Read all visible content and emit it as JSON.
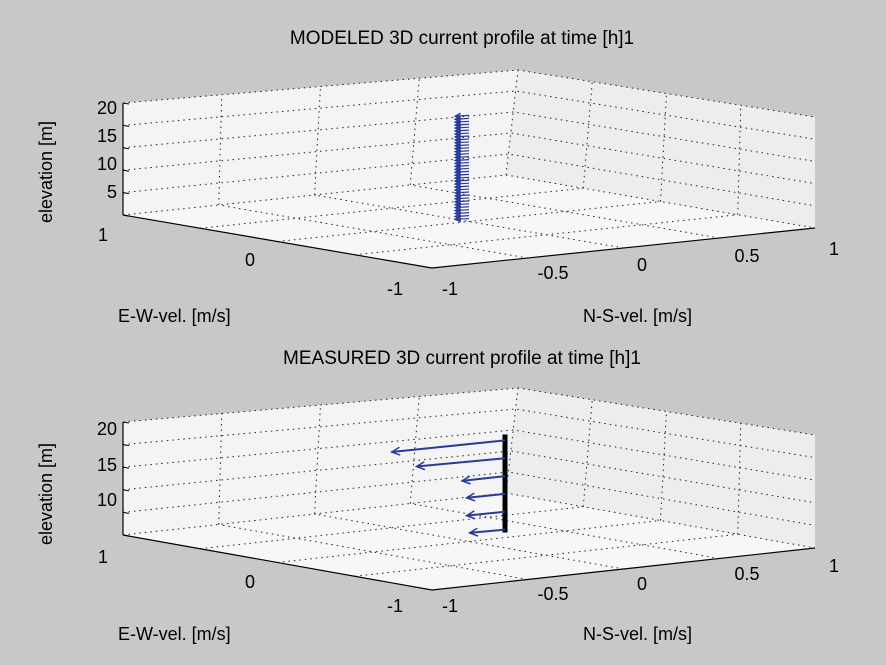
{
  "window": {
    "background": "#c8c8c8",
    "box_color": "#f4f4f4",
    "arrow_color": "#2a3a9a",
    "mast_color": "#000000"
  },
  "chart_data": [
    {
      "type": "quiver3d",
      "title": "MODELED 3D current profile at time [h]1",
      "xlabel": "E-W-vel. [m/s]",
      "ylabel": "N-S-vel. [m/s]",
      "zlabel": "elevation [m]",
      "xlim": [
        -1,
        1
      ],
      "ylim": [
        -1,
        1
      ],
      "zlim": [
        1,
        20
      ],
      "x_ticks": [
        "1",
        "0",
        "-1"
      ],
      "y_ticks": [
        "-1",
        "-0.5",
        "0",
        "0.5",
        "1"
      ],
      "z_ticks": [
        "20",
        "15",
        "10",
        "5",
        "1"
      ],
      "grid": true,
      "arrow_style": "dense",
      "elevations": [
        1.5,
        2,
        2.5,
        3,
        3.5,
        4,
        4.5,
        5,
        5.5,
        6,
        6.5,
        7,
        7.5,
        8,
        8.5,
        9,
        9.5,
        10,
        10.5,
        11,
        11.5,
        12,
        12.5,
        13,
        13.5,
        14,
        14.5,
        15,
        15.5,
        16,
        16.5,
        17,
        17.5,
        18,
        18.5,
        19
      ],
      "ew_vel": [
        0.1,
        0.1,
        0.1,
        0.1,
        0.1,
        0.1,
        0.1,
        0.1,
        0.1,
        0.1,
        0.1,
        0.1,
        0.1,
        0.1,
        0.1,
        0.1,
        0.1,
        0.1,
        0.1,
        0.1,
        0.1,
        0.1,
        0.1,
        0.1,
        0.1,
        0.1,
        0.1,
        0.1,
        0.1,
        0.1,
        0.1,
        0.1,
        0.1,
        0.1,
        0.1,
        0.1
      ],
      "ns_vel": [
        -0.08,
        -0.08,
        -0.08,
        -0.08,
        -0.08,
        -0.08,
        -0.08,
        -0.08,
        -0.08,
        -0.08,
        -0.08,
        -0.08,
        -0.08,
        -0.08,
        -0.08,
        -0.08,
        -0.08,
        -0.08,
        -0.08,
        -0.08,
        -0.08,
        -0.08,
        -0.08,
        -0.08,
        -0.08,
        -0.08,
        -0.08,
        -0.08,
        -0.08,
        -0.08,
        -0.08,
        -0.08,
        -0.08,
        -0.08,
        -0.08,
        -0.08
      ]
    },
    {
      "type": "quiver3d",
      "title": "MEASURED 3D current profile at time [h]1",
      "xlabel": "E-W-vel. [m/s]",
      "ylabel": "N-S-vel. [m/s]",
      "zlabel": "elevation [m]",
      "xlim": [
        -1,
        1
      ],
      "ylim": [
        -1,
        1
      ],
      "zlim": [
        1,
        20
      ],
      "x_ticks": [
        "1",
        "0",
        "-1"
      ],
      "y_ticks": [
        "-1",
        "-0.5",
        "0",
        "0.5",
        "1"
      ],
      "z_ticks": [
        "20",
        "15",
        "10"
      ],
      "grid": true,
      "arrow_style": "sparse",
      "elevations": [
        3,
        6,
        9,
        12,
        15,
        18
      ],
      "ew_vel": [
        0.2,
        0.22,
        0.22,
        0.25,
        0.5,
        0.65
      ],
      "ns_vel": [
        -0.12,
        -0.12,
        -0.12,
        -0.12,
        -0.3,
        -0.35
      ]
    }
  ]
}
